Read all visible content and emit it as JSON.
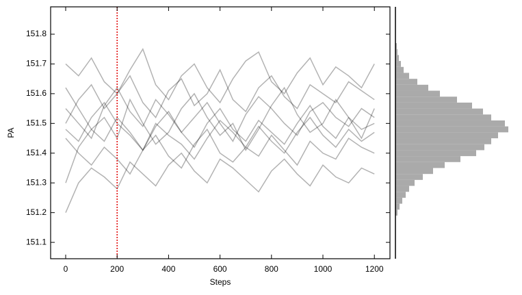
{
  "chart_data": [
    {
      "type": "line",
      "xlabel": "Steps",
      "ylabel": "PA",
      "x": [
        0,
        50,
        100,
        150,
        200,
        250,
        300,
        350,
        400,
        450,
        500,
        550,
        600,
        650,
        700,
        750,
        800,
        850,
        900,
        950,
        1000,
        1050,
        1100,
        1150,
        1200
      ],
      "series": [
        {
          "color": "#000000",
          "values": [
            151.62,
            151.55,
            151.48,
            151.52,
            151.45,
            151.58,
            151.5,
            151.43,
            151.47,
            151.55,
            151.6,
            151.52,
            151.46,
            151.5,
            151.41,
            151.48,
            151.56,
            151.62,
            151.53,
            151.47,
            151.5,
            151.58,
            151.52,
            151.45,
            151.55
          ]
        },
        {
          "color": "#000000",
          "values": [
            151.45,
            151.4,
            151.36,
            151.42,
            151.38,
            151.33,
            151.41,
            151.46,
            151.39,
            151.35,
            151.43,
            151.48,
            151.4,
            151.37,
            151.42,
            151.39,
            151.46,
            151.41,
            151.36,
            151.44,
            151.4,
            151.38,
            151.45,
            151.42,
            151.4
          ]
        },
        {
          "color": "#000000",
          "values": [
            151.5,
            151.58,
            151.63,
            151.55,
            151.6,
            151.66,
            151.57,
            151.52,
            151.61,
            151.65,
            151.56,
            151.6,
            151.68,
            151.58,
            151.54,
            151.62,
            151.66,
            151.59,
            151.55,
            151.63,
            151.6,
            151.57,
            151.64,
            151.61,
            151.58
          ]
        },
        {
          "color": "#000000",
          "values": [
            151.3,
            151.42,
            151.48,
            151.44,
            151.52,
            151.47,
            151.41,
            151.5,
            151.46,
            151.43,
            151.38,
            151.45,
            151.51,
            151.47,
            151.42,
            151.49,
            151.44,
            151.4,
            151.47,
            151.52,
            151.46,
            151.42,
            151.48,
            151.44,
            151.47
          ]
        },
        {
          "color": "#000000",
          "values": [
            151.55,
            151.5,
            151.45,
            151.56,
            151.62,
            151.54,
            151.49,
            151.58,
            151.53,
            151.47,
            151.52,
            151.57,
            151.5,
            151.44,
            151.53,
            151.59,
            151.55,
            151.5,
            151.46,
            151.54,
            151.57,
            151.52,
            151.49,
            151.55,
            151.52
          ]
        },
        {
          "color": "#000000",
          "values": [
            151.2,
            151.3,
            151.35,
            151.32,
            151.28,
            151.37,
            151.33,
            151.29,
            151.36,
            151.4,
            151.34,
            151.3,
            151.38,
            151.35,
            151.31,
            151.27,
            151.34,
            151.38,
            151.33,
            151.29,
            151.36,
            151.32,
            151.3,
            151.35,
            151.33
          ]
        },
        {
          "color": "#000000",
          "values": [
            151.7,
            151.66,
            151.72,
            151.64,
            151.6,
            151.68,
            151.75,
            151.63,
            151.58,
            151.66,
            151.7,
            151.62,
            151.57,
            151.65,
            151.71,
            151.74,
            151.64,
            151.6,
            151.67,
            151.72,
            151.63,
            151.69,
            151.66,
            151.62,
            151.7
          ]
        },
        {
          "color": "#000000",
          "values": [
            151.48,
            151.44,
            151.52,
            151.57,
            151.5,
            151.46,
            151.41,
            151.49,
            151.54,
            151.47,
            151.42,
            151.5,
            151.55,
            151.48,
            151.44,
            151.51,
            151.47,
            151.43,
            151.5,
            151.56,
            151.49,
            151.45,
            151.52,
            151.48,
            151.5
          ]
        }
      ],
      "vlines": [
        {
          "x": 200,
          "color": "#e00000"
        }
      ],
      "xlim": [
        -58.5,
        1260.6
      ],
      "xticks": [
        0,
        200,
        400,
        600,
        800,
        1000,
        1200
      ],
      "ylim": [
        151.045,
        151.892
      ],
      "yticks": [
        151.1,
        151.2,
        151.3,
        151.4,
        151.5,
        151.6,
        151.7,
        151.8
      ]
    },
    {
      "type": "histogram",
      "orientation": "horizontal",
      "color": "#aaaaaa",
      "bins": [
        151.19,
        151.21,
        151.23,
        151.25,
        151.27,
        151.29,
        151.31,
        151.33,
        151.35,
        151.37,
        151.39,
        151.41,
        151.43,
        151.45,
        151.47,
        151.49,
        151.51,
        151.53,
        151.55,
        151.57,
        151.59,
        151.61,
        151.63,
        151.65,
        151.67,
        151.69,
        151.71,
        151.73,
        151.75,
        151.77
      ],
      "counts": [
        3,
        6,
        10,
        15,
        20,
        28,
        40,
        55,
        72,
        95,
        118,
        130,
        140,
        150,
        165,
        160,
        140,
        128,
        112,
        90,
        65,
        48,
        32,
        20,
        12,
        8,
        5,
        3,
        2
      ],
      "xlim": [
        0,
        170
      ],
      "ylim": [
        151.045,
        151.892
      ]
    }
  ]
}
